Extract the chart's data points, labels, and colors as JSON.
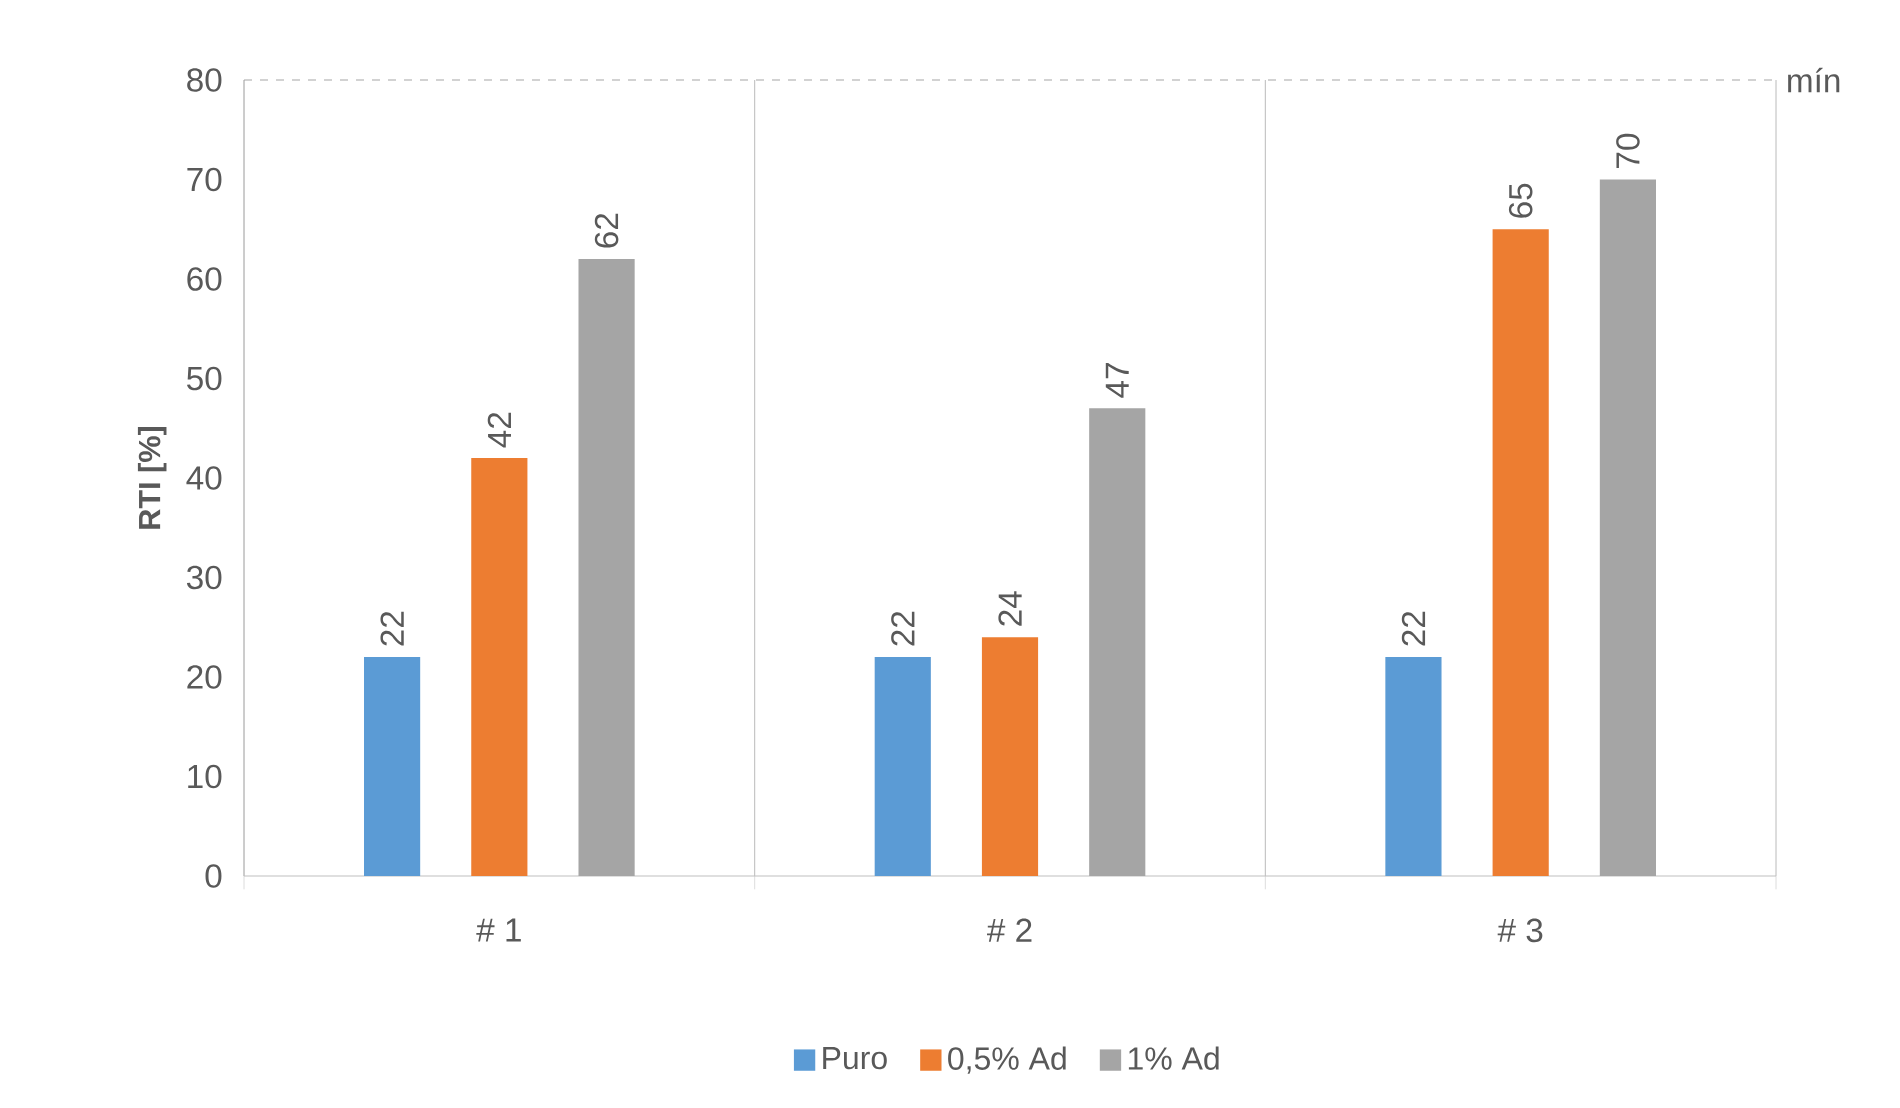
{
  "chart_data": {
    "type": "bar",
    "ylabel": "RTI [%]",
    "categories": [
      "# 1",
      "# 2",
      "# 3"
    ],
    "series": [
      {
        "name": "Puro",
        "color": "#5b9bd5",
        "values": [
          22,
          22,
          22
        ]
      },
      {
        "name": "0,5% Ad",
        "color": "#ed7d31",
        "values": [
          42,
          24,
          65
        ]
      },
      {
        "name": "1% Ad",
        "color": "#a5a5a5",
        "values": [
          62,
          47,
          70
        ]
      }
    ],
    "ylim": [
      0,
      80
    ],
    "yticks": [
      0,
      10,
      20,
      30,
      40,
      50,
      60,
      70,
      80
    ],
    "grid": "x",
    "legend": "bottom",
    "data_labels": true,
    "ref_lines": [
      {
        "axis": "y",
        "value": 80,
        "label": "mín",
        "color": "#a5a5a5",
        "line_style": "dashed"
      }
    ]
  }
}
